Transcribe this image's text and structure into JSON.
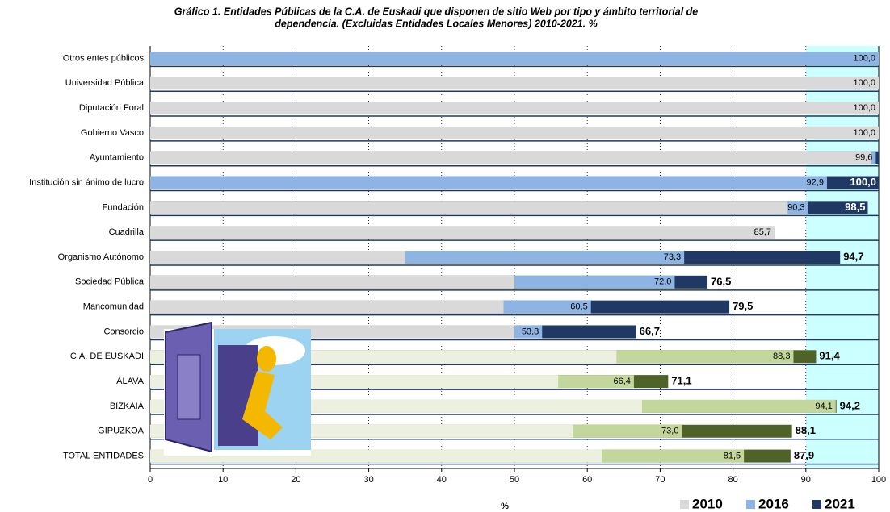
{
  "chart_data": {
    "type": "overlap-bar",
    "title": [
      "Gráfico 1. Entidades Públicas de la C.A. de Euskadi que disponen de sitio Web por tipo y ámbito territorial de",
      "dependencia. (Excluidas Entidades Locales Menores) 2010-2021. %"
    ],
    "x_label": "%",
    "categories": [
      "Otros entes públicos",
      "Universidad Pública",
      "Diputación Foral",
      "Gobierno Vasco",
      "Ayuntamiento",
      "Institución sin ánimo de lucro",
      "Fundación",
      "Cuadrilla",
      "Organismo Autónomo",
      "Sociedad Pública",
      "Mancomunidad",
      "Consorcio",
      "C.A. DE EUSKADI",
      "ÁLAVA",
      "BIZKAIA",
      "GIPUZKOA",
      "TOTAL  ENTIDADES"
    ],
    "series": [
      {
        "name": "2010",
        "color": "#d9d9d9",
        "colors": [
          "#d9d9d9",
          "#d9d9d9",
          "#d9d9d9",
          "#d9d9d9",
          "#d9d9d9",
          "#d9d9d9",
          "#d9d9d9",
          "#d9d9d9",
          "#d9d9d9",
          "#d9d9d9",
          "#d9d9d9",
          "#d9d9d9",
          "#ebf1de",
          "#ebf1de",
          "#ebf1de",
          "#ebf1de",
          "#ebf1de"
        ],
        "values": [
          null,
          100,
          100,
          100,
          99,
          null,
          87.5,
          85.7,
          35,
          50,
          48.5,
          50,
          64,
          56,
          67.5,
          58,
          62
        ],
        "value_labels": [
          null,
          "100,0",
          "100,0",
          "100,0",
          null,
          null,
          null,
          "85,7",
          null,
          null,
          null,
          null,
          null,
          null,
          null,
          null,
          null
        ]
      },
      {
        "name": "2016",
        "color": "#8eb4e3",
        "colors": [
          "#8eb4e3",
          "#8eb4e3",
          "#8eb4e3",
          "#8eb4e3",
          "#8eb4e3",
          "#8eb4e3",
          "#8eb4e3",
          "#8eb4e3",
          "#8eb4e3",
          "#8eb4e3",
          "#8eb4e3",
          "#8eb4e3",
          "#c3d69b",
          "#c3d69b",
          "#c3d69b",
          "#c3d69b",
          "#c3d69b"
        ],
        "values": [
          100,
          null,
          null,
          null,
          99.6,
          92.9,
          90.3,
          null,
          73.3,
          72.0,
          60.5,
          53.8,
          88.3,
          66.4,
          94.1,
          73.0,
          81.5
        ],
        "value_labels": [
          "100,0",
          null,
          null,
          null,
          "99,6",
          "92,9",
          "90,3",
          null,
          "73,3",
          "72,0",
          "60,5",
          "53,8",
          "88,3",
          "66,4",
          "94,1",
          "73,0",
          "81,5"
        ]
      },
      {
        "name": "2021",
        "color": "#1f3864",
        "colors": [
          "#1f3864",
          "#1f3864",
          "#1f3864",
          "#1f3864",
          "#1f3864",
          "#1f3864",
          "#1f3864",
          "#1f3864",
          "#1f3864",
          "#1f3864",
          "#1f3864",
          "#1f3864",
          "#4f6228",
          "#4f6228",
          "#4f6228",
          "#4f6228",
          "#4f6228"
        ],
        "values": [
          null,
          null,
          null,
          null,
          100,
          100,
          98.5,
          null,
          94.7,
          76.5,
          79.5,
          66.7,
          91.4,
          71.1,
          94.2,
          88.1,
          87.9
        ],
        "value_labels": [
          null,
          null,
          null,
          null,
          null,
          "100,0",
          "98,5",
          null,
          "94,7",
          "76,5",
          "79,5",
          "66,7",
          "91,4",
          "71,1",
          "94,2",
          "88,1",
          "87,9"
        ]
      }
    ],
    "xlim": [
      0,
      100
    ],
    "xticks": [
      0,
      10,
      20,
      30,
      40,
      50,
      60,
      70,
      80,
      90,
      100
    ],
    "grid": true,
    "legend": "bottom-right"
  }
}
